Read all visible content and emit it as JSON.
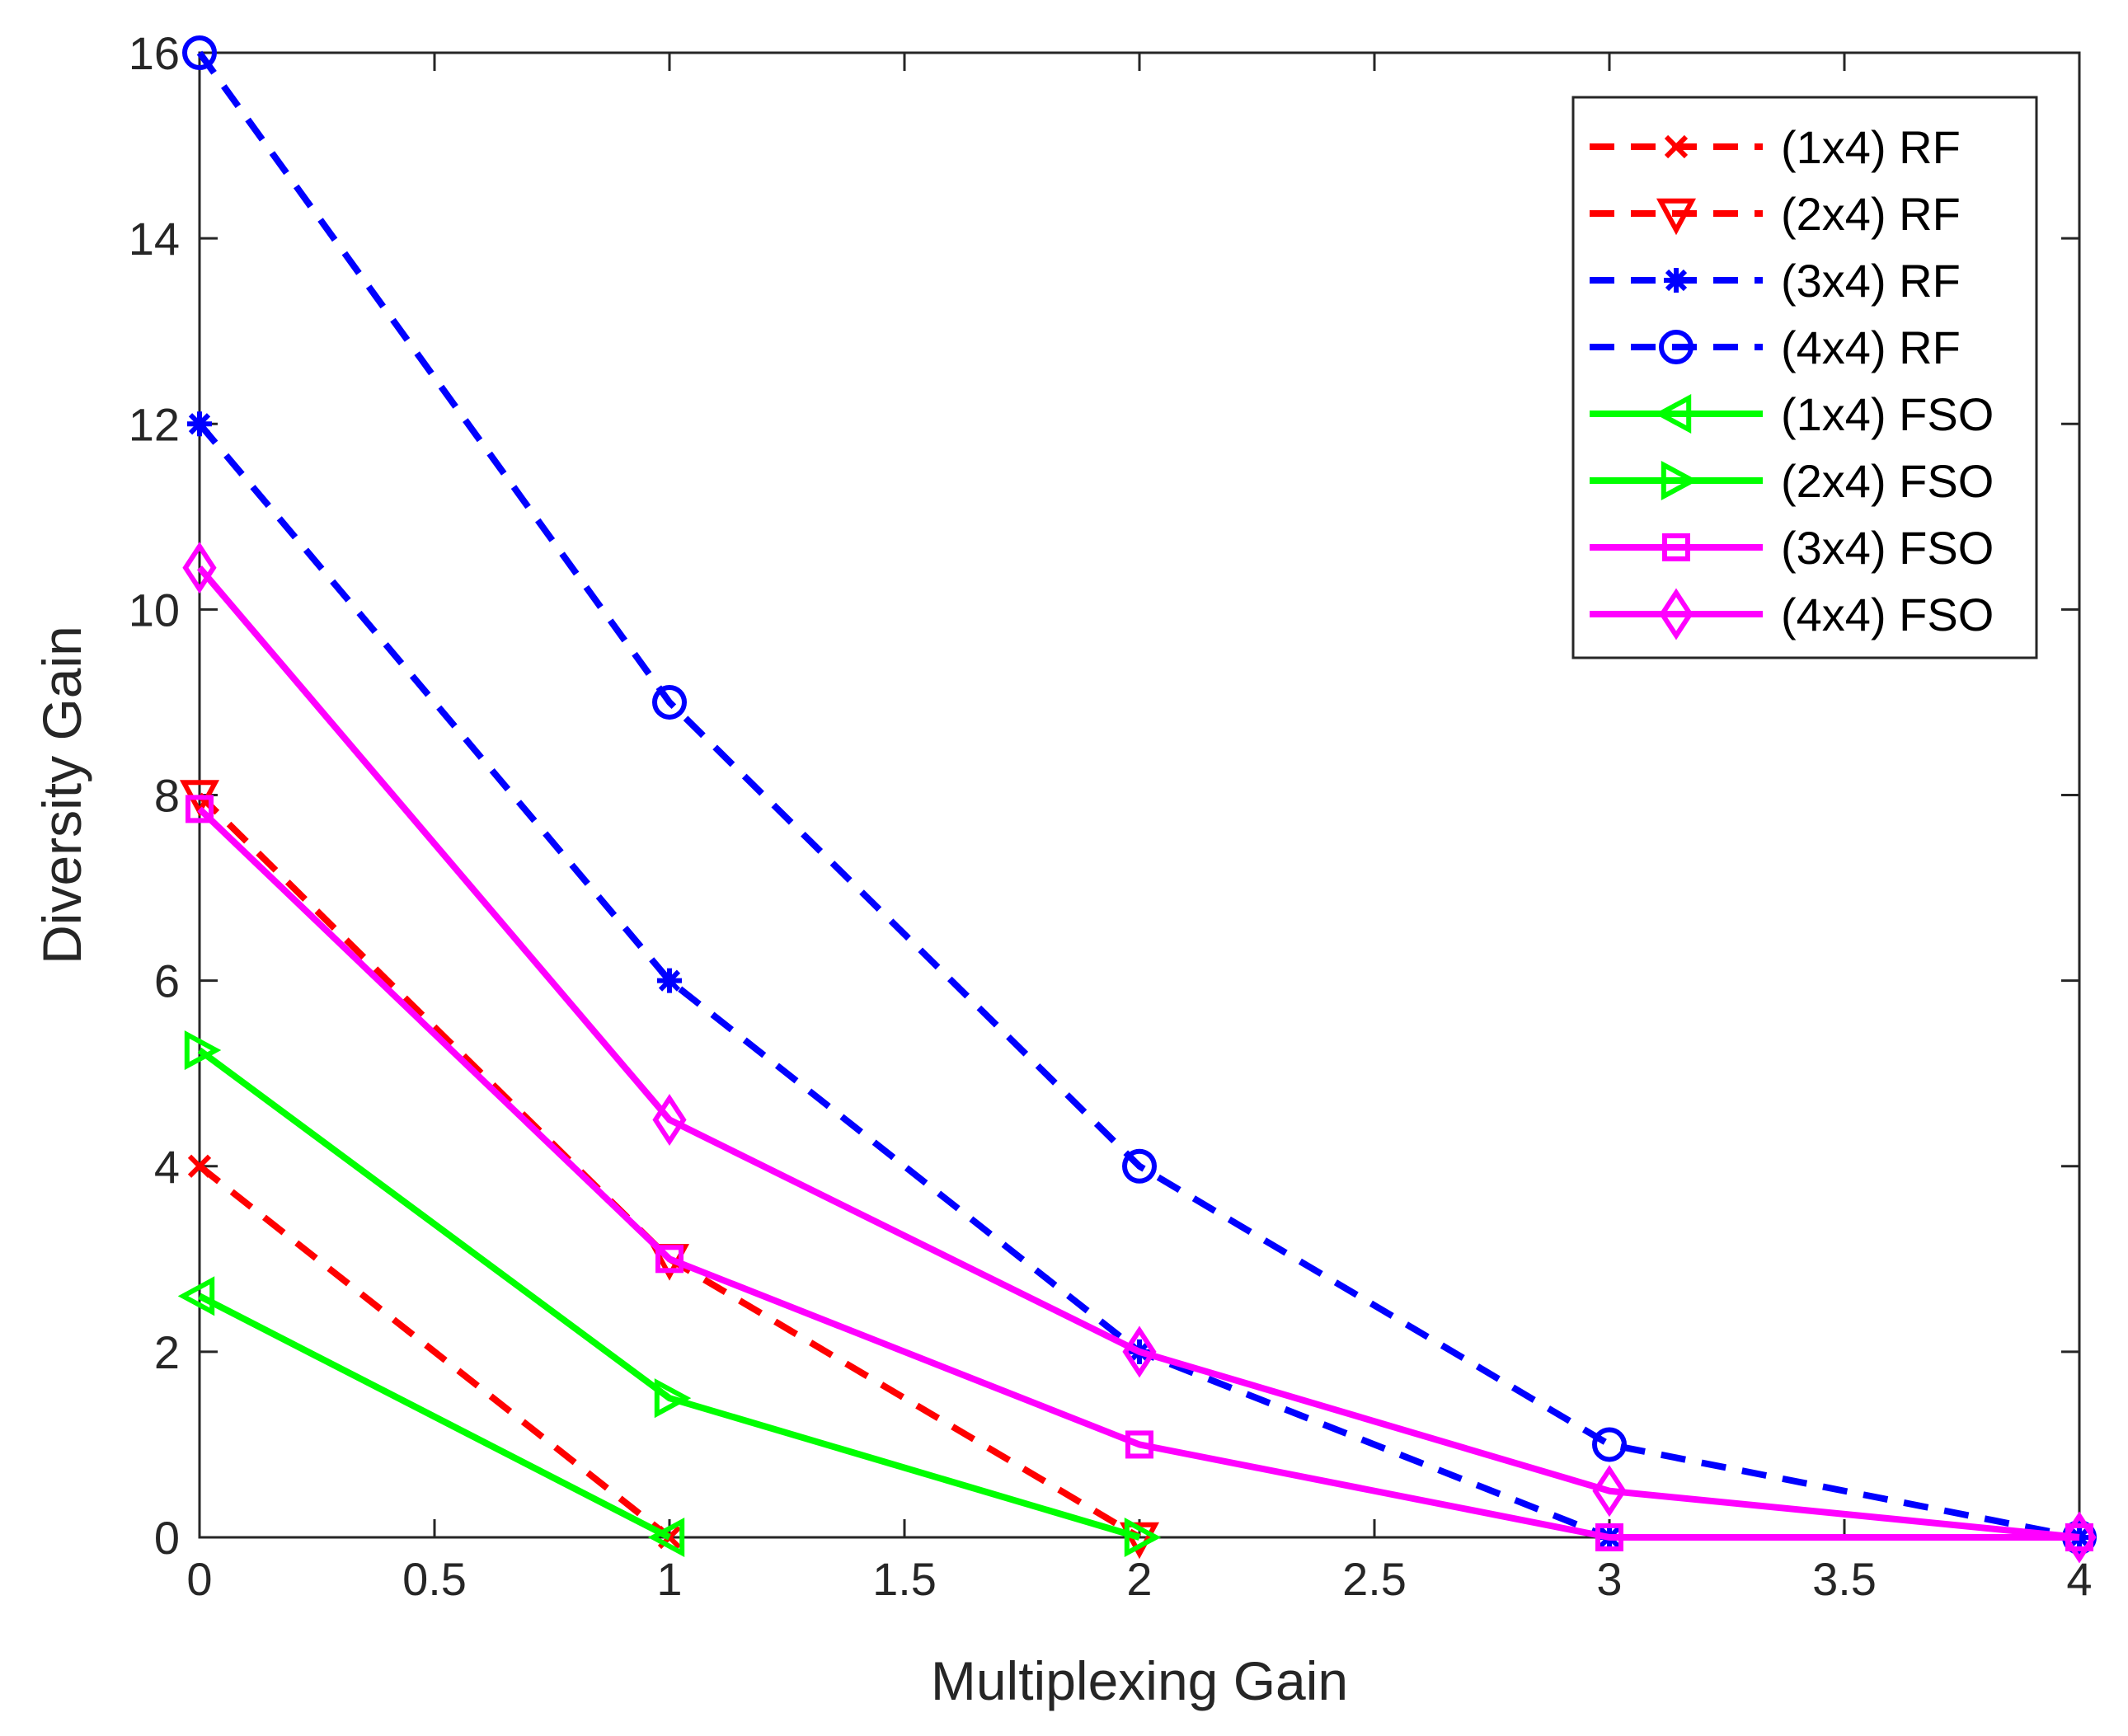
{
  "chart_data": {
    "type": "line",
    "title": "",
    "xlabel": "Multiplexing Gain",
    "ylabel": "Diversity Gain",
    "xlim": [
      0,
      4
    ],
    "ylim": [
      0,
      16
    ],
    "xticks": [
      0,
      0.5,
      1,
      1.5,
      2,
      2.5,
      3,
      3.5,
      4
    ],
    "xtick_labels": [
      "0",
      "0.5",
      "1",
      "1.5",
      "2",
      "2.5",
      "3",
      "3.5",
      "4"
    ],
    "yticks": [
      0,
      2,
      4,
      6,
      8,
      10,
      12,
      14,
      16
    ],
    "ytick_labels": [
      "0",
      "2",
      "4",
      "6",
      "8",
      "10",
      "12",
      "14",
      "16"
    ],
    "grid": false,
    "legend_position": "top-right",
    "series": [
      {
        "name": "(1x4) RF",
        "color": "#ff0000",
        "dash": "dashed",
        "marker": "x",
        "x": [
          0,
          1
        ],
        "y": [
          4,
          0
        ]
      },
      {
        "name": "(2x4) RF",
        "color": "#ff0000",
        "dash": "dashed",
        "marker": "triangle-down",
        "x": [
          0,
          1,
          2
        ],
        "y": [
          8,
          3,
          0
        ]
      },
      {
        "name": "(3x4) RF",
        "color": "#0000ff",
        "dash": "dashed",
        "marker": "asterisk",
        "x": [
          0,
          1,
          2,
          3,
          4
        ],
        "y": [
          12,
          6,
          2,
          0,
          0
        ]
      },
      {
        "name": "(4x4) RF",
        "color": "#0000ff",
        "dash": "dashed",
        "marker": "circle",
        "x": [
          0,
          1,
          2,
          3,
          4
        ],
        "y": [
          16,
          9,
          4,
          1,
          0
        ]
      },
      {
        "name": "(1x4) FSO",
        "color": "#00ff00",
        "dash": "solid",
        "marker": "triangle-left",
        "x": [
          0,
          1
        ],
        "y": [
          2.6,
          0
        ]
      },
      {
        "name": "(2x4) FSO",
        "color": "#00ff00",
        "dash": "solid",
        "marker": "triangle-right",
        "x": [
          0,
          1,
          2
        ],
        "y": [
          5.25,
          1.5,
          0
        ]
      },
      {
        "name": "(3x4) FSO",
        "color": "#ff00ff",
        "dash": "solid",
        "marker": "square",
        "x": [
          0,
          1,
          2,
          3,
          4
        ],
        "y": [
          7.85,
          3,
          1,
          0,
          0
        ]
      },
      {
        "name": "(4x4) FSO",
        "color": "#ff00ff",
        "dash": "solid",
        "marker": "diamond",
        "x": [
          0,
          1,
          2,
          3,
          4
        ],
        "y": [
          10.45,
          4.5,
          2,
          0.5,
          0
        ]
      }
    ]
  }
}
